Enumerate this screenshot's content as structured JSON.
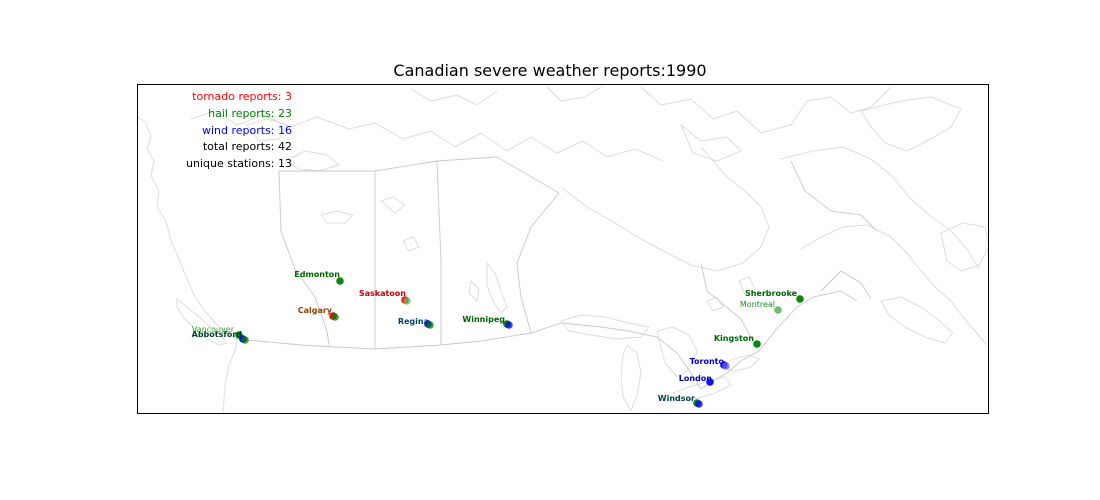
{
  "title": "Canadian severe weather reports:1990",
  "stats": {
    "tornado": "tornado reports: 3",
    "hail": "hail reports: 23",
    "wind": "wind reports: 16",
    "total": "total reports: 42",
    "stations": "unique stations: 13"
  },
  "colors": {
    "tornado": "#ff0000",
    "hail": "#008000",
    "wind": "#0000ff",
    "text": "#000000",
    "boundary": "#c8c8c8",
    "coast": "#dddddd",
    "frame": "#000000"
  },
  "stations": [
    {
      "name": "Edmonton",
      "label_color": "#006400",
      "marker_colors": [
        "#008000"
      ]
    },
    {
      "name": "Saskatoon",
      "label_color": "#cc0000",
      "marker_colors": [
        "#ff0000",
        "#66bb66"
      ]
    },
    {
      "name": "Calgary",
      "label_color": "#8b4000",
      "marker_colors": [
        "#ff0000",
        "#008000"
      ]
    },
    {
      "name": "Regina",
      "label_color": "#004466",
      "marker_colors": [
        "#0000ff",
        "#008000"
      ]
    },
    {
      "name": "Winnipeg",
      "label_color": "#006400",
      "marker_colors": [
        "#008000",
        "#0000ff"
      ]
    },
    {
      "name": "Vancouver",
      "label_color": "#33aa33",
      "marker_colors": [
        "#008000"
      ]
    },
    {
      "name": "Abbotsford",
      "label_color": "#004422",
      "marker_colors": [
        "#0000ff",
        "#008000"
      ]
    },
    {
      "name": "Sherbrooke",
      "label_color": "#006400",
      "marker_colors": [
        "#008000"
      ]
    },
    {
      "name": "Montreal",
      "label_color": "#228b22",
      "marker_colors": [
        "#66bb66"
      ]
    },
    {
      "name": "Kingston",
      "label_color": "#006400",
      "marker_colors": [
        "#008000"
      ]
    },
    {
      "name": "Toronto",
      "label_color": "#0000cc",
      "marker_colors": [
        "#0000ff",
        "#6666ff"
      ]
    },
    {
      "name": "London",
      "label_color": "#0000cc",
      "marker_colors": [
        "#0000ff"
      ]
    },
    {
      "name": "Windsor",
      "label_color": "#004444",
      "marker_colors": [
        "#008000",
        "#0000ff"
      ]
    }
  ]
}
